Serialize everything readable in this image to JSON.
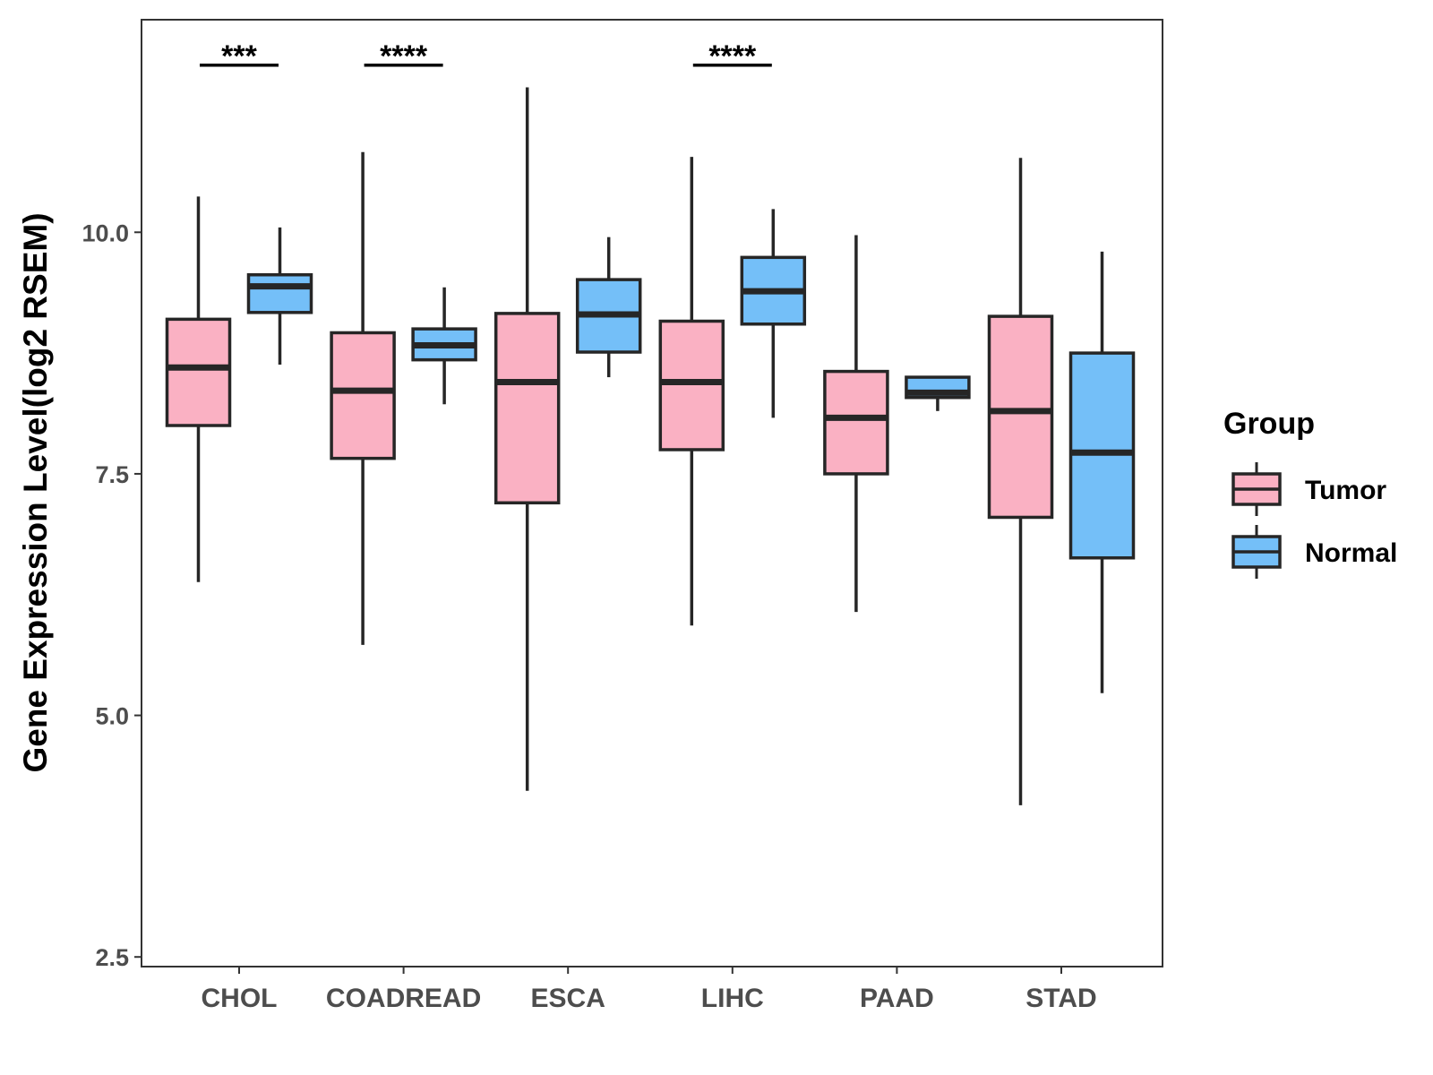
{
  "chart_data": {
    "type": "boxplot",
    "title": "",
    "xlabel": "",
    "ylabel": "Gene Expression Level(log2 RSEM)",
    "ylim": [
      2.4,
      12.2
    ],
    "yticks": [
      2.5,
      5.0,
      7.5,
      10.0
    ],
    "ytick_labels": [
      "2.5",
      "5.0",
      "7.5",
      "10.0"
    ],
    "categories": [
      "CHOL",
      "COADREAD",
      "ESCA",
      "LIHC",
      "PAAD",
      "STAD"
    ],
    "legend": {
      "title": "Group",
      "placement": "right",
      "entries": [
        {
          "name": "Tumor",
          "color": "#FAB1C3"
        },
        {
          "name": "Normal",
          "color": "#74BFF8"
        }
      ]
    },
    "series": [
      {
        "name": "Tumor",
        "color": "#FAB1C3",
        "boxes": [
          {
            "category": "CHOL",
            "whisker_low": 6.38,
            "q1": 8.0,
            "median": 8.6,
            "q3": 9.1,
            "whisker_high": 10.37
          },
          {
            "category": "COADREAD",
            "whisker_low": 5.73,
            "q1": 7.66,
            "median": 8.36,
            "q3": 8.96,
            "whisker_high": 10.83
          },
          {
            "category": "ESCA",
            "whisker_low": 4.22,
            "q1": 7.2,
            "median": 8.45,
            "q3": 9.16,
            "whisker_high": 11.5
          },
          {
            "category": "LIHC",
            "whisker_low": 5.93,
            "q1": 7.75,
            "median": 8.45,
            "q3": 9.08,
            "whisker_high": 10.78
          },
          {
            "category": "PAAD",
            "whisker_low": 6.07,
            "q1": 7.5,
            "median": 8.08,
            "q3": 8.56,
            "whisker_high": 9.97
          },
          {
            "category": "STAD",
            "whisker_low": 4.07,
            "q1": 7.05,
            "median": 8.15,
            "q3": 9.13,
            "whisker_high": 10.77
          }
        ]
      },
      {
        "name": "Normal",
        "color": "#74BFF8",
        "boxes": [
          {
            "category": "CHOL",
            "whisker_low": 8.63,
            "q1": 9.17,
            "median": 9.44,
            "q3": 9.56,
            "whisker_high": 10.05
          },
          {
            "category": "COADREAD",
            "whisker_low": 8.22,
            "q1": 8.68,
            "median": 8.83,
            "q3": 9.0,
            "whisker_high": 9.43
          },
          {
            "category": "ESCA",
            "whisker_low": 8.5,
            "q1": 8.76,
            "median": 9.15,
            "q3": 9.51,
            "whisker_high": 9.95
          },
          {
            "category": "LIHC",
            "whisker_low": 8.08,
            "q1": 9.05,
            "median": 9.39,
            "q3": 9.74,
            "whisker_high": 10.24
          },
          {
            "category": "PAAD",
            "whisker_low": 8.15,
            "q1": 8.29,
            "median": 8.34,
            "q3": 8.5,
            "whisker_high": 8.5
          },
          {
            "category": "STAD",
            "whisker_low": 5.23,
            "q1": 6.63,
            "median": 7.72,
            "q3": 8.75,
            "whisker_high": 9.8
          }
        ]
      }
    ],
    "annotations": [
      {
        "category": "CHOL",
        "label": "***",
        "y": 11.85
      },
      {
        "category": "COADREAD",
        "label": "****",
        "y": 11.85
      },
      {
        "category": "LIHC",
        "label": "****",
        "y": 11.85
      }
    ]
  }
}
